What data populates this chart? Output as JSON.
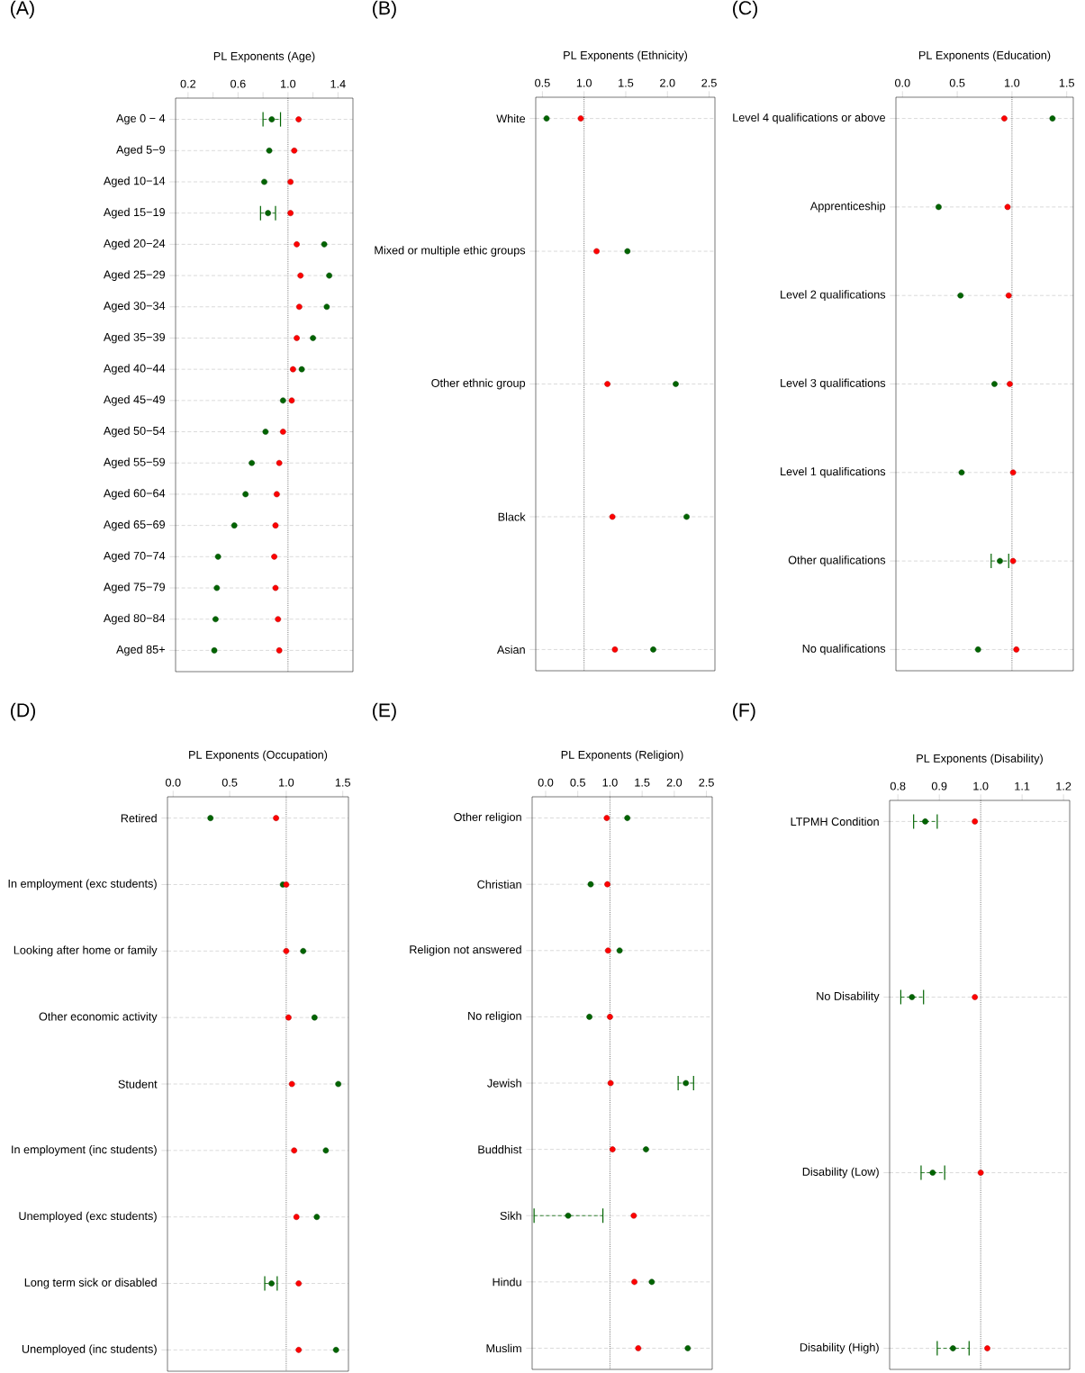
{
  "chart_data": [
    {
      "type": "scatter",
      "orientation": "horizontal",
      "title": "(A)",
      "xlabel": "PL Exponents (Age)",
      "marker": "circle",
      "grid": "y",
      "categories": [
        "Age 0 − 4",
        "Aged 5−9",
        "Aged 10−14",
        "Aged 15−19",
        "Aged 20−24",
        "Aged 25−29",
        "Aged 30−34",
        "Aged 35−39",
        "Aged 40−44",
        "Aged 45−49",
        "Aged 50−54",
        "Aged 55−59",
        "Aged 60−64",
        "Aged 65−69",
        "Aged 70−74",
        "Aged 75−79",
        "Aged 80−84",
        "Aged 85+"
      ],
      "series": [
        {
          "color": "#006400",
          "values": [
            0.87,
            0.85,
            0.81,
            0.84,
            1.29,
            1.33,
            1.31,
            1.2,
            1.11,
            0.96,
            0.82,
            0.71,
            0.66,
            0.57,
            0.44,
            0.43,
            0.42,
            0.41
          ],
          "errors": [
            [
              0.8,
              0.94
            ],
            null,
            null,
            [
              0.78,
              0.9
            ],
            null,
            null,
            null,
            null,
            null,
            null,
            null,
            null,
            null,
            null,
            null,
            null,
            null,
            null
          ]
        },
        {
          "color": "#ff0000",
          "values": [
            1.085,
            1.05,
            1.02,
            1.02,
            1.07,
            1.1,
            1.09,
            1.07,
            1.04,
            1.03,
            0.96,
            0.93,
            0.91,
            0.9,
            0.89,
            0.9,
            0.92,
            0.93
          ]
        }
      ],
      "xlim": [
        0.1,
        1.52
      ],
      "xticks": [
        0.2,
        {
          "value": 0.4,
          "label": null
        },
        0.6,
        {
          "value": 0.8,
          "label": null
        },
        {
          "value": 1,
          "label": "1.0"
        },
        {
          "value": 1.2,
          "label": null
        },
        1.4
      ],
      "ref_lines": [
        {
          "axis": "x",
          "value": 1,
          "line_style": "dotted"
        }
      ]
    },
    {
      "type": "scatter",
      "orientation": "horizontal",
      "title": "(B)",
      "xlabel": "PL Exponents (Ethnicity)",
      "marker": "circle",
      "grid": "y",
      "categories": [
        "White",
        "Mixed or multiple ethic groups",
        "Other ethnic group",
        "Black",
        "Asian"
      ],
      "series": [
        {
          "color": "#006400",
          "values": [
            0.55,
            1.52,
            2.1,
            2.23,
            1.83
          ]
        },
        {
          "color": "#ff0000",
          "values": [
            0.96,
            1.15,
            1.28,
            1.34,
            1.37
          ]
        }
      ],
      "xlim": [
        0.42,
        2.57
      ],
      "xticks": [
        0.5,
        {
          "value": 1,
          "label": "1.0"
        },
        1.5,
        {
          "value": 2,
          "label": "2.0"
        },
        2.5
      ],
      "ref_lines": [
        {
          "axis": "x",
          "value": 1,
          "line_style": "dotted"
        }
      ]
    },
    {
      "type": "scatter",
      "orientation": "horizontal",
      "title": "(C)",
      "xlabel": "PL Exponents (Education)",
      "marker": "circle",
      "grid": "y",
      "categories": [
        "Level 4 qualifications or above",
        "Apprenticeship",
        "Level 2 qualifications",
        "Level 3 qualifications",
        "Level 1 qualifications",
        "Other qualifications",
        "No qualifications"
      ],
      "series": [
        {
          "color": "#006400",
          "values": [
            1.37,
            0.33,
            0.53,
            0.84,
            0.54,
            0.89,
            0.69
          ],
          "errors": [
            null,
            null,
            null,
            null,
            null,
            [
              0.81,
              0.97
            ],
            null
          ]
        },
        {
          "color": "#ff0000",
          "values": [
            0.93,
            0.96,
            0.97,
            0.98,
            1.01,
            1.01,
            1.04
          ]
        }
      ],
      "xlim": [
        -0.06,
        1.56
      ],
      "xticks": [
        {
          "value": 0,
          "label": "0.0"
        },
        0.5,
        {
          "value": 1,
          "label": "1.0"
        },
        1.5
      ],
      "ref_lines": [
        {
          "axis": "x",
          "value": 1,
          "line_style": "dotted"
        }
      ]
    },
    {
      "type": "scatter",
      "orientation": "horizontal",
      "title": "(D)",
      "xlabel": "PL Exponents (Occupation)",
      "marker": "circle",
      "grid": "y",
      "categories": [
        "Retired",
        "In employment (exc students)",
        "Looking after home or family",
        "Other economic activity",
        "Student",
        "In employment (inc students)",
        "Unemployed (exc students)",
        "Long term sick or disabled",
        "Unemployed (inc students)"
      ],
      "series": [
        {
          "color": "#006400",
          "values": [
            0.33,
            0.97,
            1.15,
            1.25,
            1.46,
            1.35,
            1.27,
            0.87,
            1.44
          ],
          "errors": [
            null,
            null,
            null,
            null,
            null,
            null,
            null,
            [
              0.81,
              0.92
            ],
            null
          ]
        },
        {
          "color": "#ff0000",
          "values": [
            0.91,
            1.0,
            1.0,
            1.02,
            1.05,
            1.07,
            1.09,
            1.11,
            1.11
          ]
        }
      ],
      "xlim": [
        -0.05,
        1.55
      ],
      "xticks": [
        {
          "value": 0,
          "label": "0.0"
        },
        0.5,
        {
          "value": 1,
          "label": "1.0"
        },
        1.5
      ],
      "ref_lines": [
        {
          "axis": "x",
          "value": 1,
          "line_style": "dotted"
        }
      ]
    },
    {
      "type": "scatter",
      "orientation": "horizontal",
      "title": "(E)",
      "xlabel": "PL Exponents (Religion)",
      "marker": "circle",
      "grid": "y",
      "categories": [
        "Other religion",
        "Christian",
        "Religion not answered",
        "No religion",
        "Jewish",
        "Buddhist",
        "Sikh",
        "Hindu",
        "Muslim"
      ],
      "series": [
        {
          "color": "#006400",
          "values": [
            1.27,
            0.7,
            1.15,
            0.68,
            2.18,
            1.56,
            0.35,
            1.65,
            2.21
          ],
          "errors": [
            null,
            null,
            null,
            null,
            [
              2.06,
              2.3
            ],
            null,
            [
              -0.18,
              0.89
            ],
            null,
            null
          ]
        },
        {
          "color": "#ff0000",
          "values": [
            0.95,
            0.96,
            0.97,
            1.0,
            1.01,
            1.04,
            1.37,
            1.38,
            1.44
          ]
        }
      ],
      "xlim": [
        -0.21,
        2.59
      ],
      "xticks": [
        {
          "value": 0,
          "label": "0.0"
        },
        0.5,
        {
          "value": 1,
          "label": "1.0"
        },
        1.5,
        {
          "value": 2,
          "label": "2.0"
        },
        2.5
      ],
      "ref_lines": [
        {
          "axis": "x",
          "value": 1,
          "line_style": "dotted"
        }
      ]
    },
    {
      "type": "scatter",
      "orientation": "horizontal",
      "title": "(F)",
      "xlabel": "PL Exponents (Disability)",
      "marker": "circle",
      "grid": "y",
      "categories": [
        "LTPMH Condition",
        "No Disability",
        "Disability (Low)",
        "Disability (High)"
      ],
      "series": [
        {
          "color": "#006400",
          "values": [
            0.866,
            0.834,
            0.884,
            0.933
          ],
          "errors": [
            [
              0.838,
              0.895
            ],
            [
              0.807,
              0.862
            ],
            [
              0.856,
              0.913
            ],
            [
              0.895,
              0.972
            ]
          ]
        },
        {
          "color": "#ff0000",
          "values": [
            0.986,
            0.986,
            1.0,
            1.016
          ]
        }
      ],
      "xlim": [
        0.78,
        1.215
      ],
      "xticks": [
        0.8,
        0.9,
        {
          "value": 1,
          "label": "1.0"
        },
        1.1,
        1.2
      ],
      "ref_lines": [
        {
          "axis": "x",
          "value": 1,
          "line_style": "dotted"
        }
      ]
    }
  ]
}
